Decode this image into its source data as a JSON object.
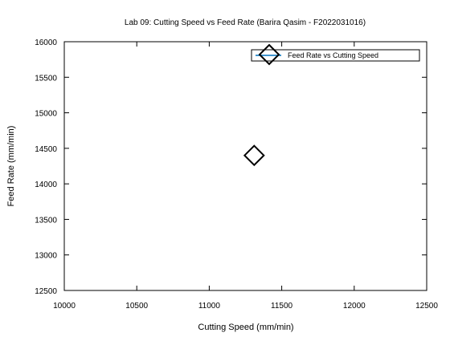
{
  "chart_data": {
    "type": "scatter",
    "title": "Lab 09: Cutting Speed vs Feed Rate (Barira Qasim - F2022031016)",
    "xlabel": "Cutting Speed (mm/min)",
    "ylabel": "Feed Rate (mm/min)",
    "xlim": [
      10000,
      12500
    ],
    "ylim": [
      12500,
      16000
    ],
    "x_ticks": [
      "10000",
      "10500",
      "11000",
      "11500",
      "12000",
      "12500"
    ],
    "y_ticks": [
      "12500",
      "13000",
      "13500",
      "14000",
      "14500",
      "15000",
      "15500",
      "16000"
    ],
    "grid": false,
    "legend_position": "top-right",
    "series": [
      {
        "name": "Feed Rate vs Cutting Speed",
        "marker": "diamond",
        "color": "#000000",
        "line_color": "#0072bd",
        "points": [
          {
            "x": 11310,
            "y": 14400
          }
        ]
      }
    ]
  }
}
